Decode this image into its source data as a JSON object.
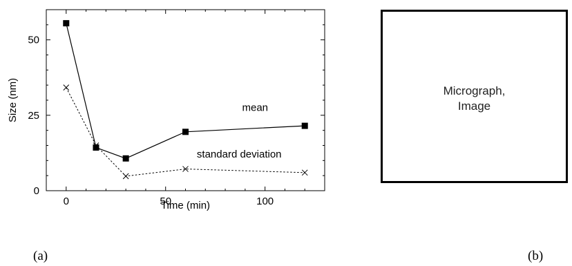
{
  "chart_data": {
    "type": "line",
    "xlabel": "Time (min)",
    "ylabel": "Size (nm)",
    "xlim": [
      -10,
      130
    ],
    "ylim": [
      0,
      60
    ],
    "xticks": [
      0,
      50,
      100
    ],
    "yticks": [
      0,
      25,
      50
    ],
    "grid": false,
    "series": [
      {
        "name": "mean",
        "marker": "filled-square",
        "line": "solid",
        "color": "#000000",
        "x": [
          0,
          15,
          30,
          60,
          120
        ],
        "y": [
          55.5,
          14.3,
          10.7,
          19.5,
          21.5
        ]
      },
      {
        "name": "standard deviation",
        "marker": "x",
        "line": "dotted",
        "color": "#000000",
        "x": [
          0,
          15,
          30,
          60,
          120
        ],
        "y": [
          34.2,
          15.0,
          4.8,
          7.2,
          6.0
        ]
      }
    ]
  },
  "micrograph": {
    "label": "Micrograph,\nImage"
  },
  "panel_labels": {
    "a": "(a)",
    "b": "(b)"
  }
}
